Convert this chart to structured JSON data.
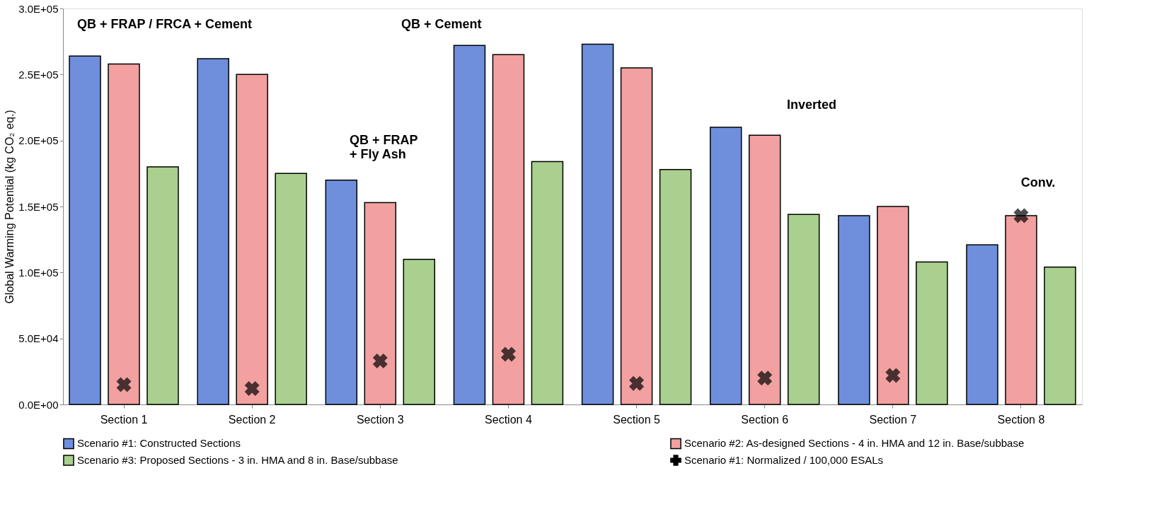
{
  "chart_data": {
    "type": "bar",
    "ylabel": "Global Warming Potential  (kg CO₂ eq.)",
    "categories": [
      "Section 1",
      "Section 2",
      "Section 3",
      "Section 4",
      "Section 5",
      "Section 6",
      "Section 7",
      "Section 8"
    ],
    "series": [
      {
        "name": "Scenario #1: Constructed Sections",
        "color": "#6f8fdc",
        "values": [
          264000,
          262000,
          170000,
          272000,
          273000,
          210000,
          143000,
          121000
        ]
      },
      {
        "name": "Scenario #2: As-designed Sections - 4 in. HMA and 12 in. Base/subbase",
        "color": "#f2a0a0",
        "values": [
          258000,
          250000,
          153000,
          265000,
          255000,
          204000,
          150000,
          143000
        ]
      },
      {
        "name": "Scenario #3: Proposed Sections - 3 in. HMA and 8 in. Base/subbase",
        "color": "#a9d08e",
        "values": [
          180000,
          175000,
          110000,
          184000,
          178000,
          144000,
          108000,
          104000
        ]
      },
      {
        "name": "Scenario #1: Normalized / 100,000 ESALs",
        "color": "#000000",
        "type": "scatter",
        "marker": "cross",
        "values": [
          15000,
          12000,
          33000,
          38000,
          16000,
          20000,
          22000,
          143000
        ]
      }
    ],
    "ylim": [
      0,
      300000
    ],
    "yticks": [
      {
        "value": 0,
        "label": "0.0E+00"
      },
      {
        "value": 50000,
        "label": "5.0E+04"
      },
      {
        "value": 100000,
        "label": "1.0E+05"
      },
      {
        "value": 150000,
        "label": "1.5E+05"
      },
      {
        "value": 200000,
        "label": "2.0E+05"
      },
      {
        "value": 250000,
        "label": "2.5E+05"
      },
      {
        "value": 300000,
        "label": "3.0E+05"
      }
    ],
    "grid": false,
    "legend": "bottom",
    "annotations": [
      "QB + FRAP / FRCA + Cement",
      "QB + FRAP\n+ Fly Ash",
      "QB + Cement",
      "Inverted",
      "Conv."
    ]
  }
}
